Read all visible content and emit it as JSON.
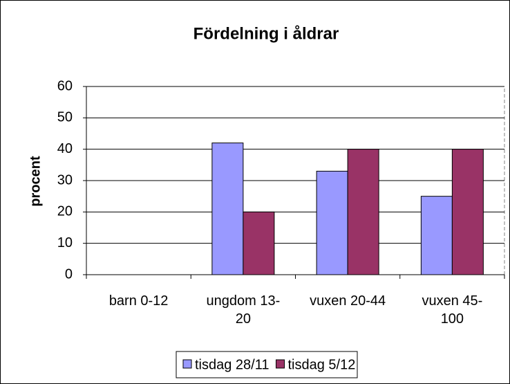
{
  "chart_data": {
    "type": "bar",
    "title": "Fördelning i åldrar",
    "y_label": "procent",
    "categories": [
      "barn 0-12",
      "ungdom 13-20",
      "vuxen 20-44",
      "vuxen 45-100"
    ],
    "series": [
      {
        "name": "tisdag 28/11",
        "color": "#9999ff",
        "values": [
          0,
          42,
          33,
          25
        ]
      },
      {
        "name": "tisdag 5/12",
        "color": "#993366",
        "values": [
          0,
          20,
          40,
          40
        ]
      }
    ],
    "ylim": [
      0,
      60
    ],
    "yticks": [
      0,
      10,
      20,
      30,
      40,
      50,
      60
    ],
    "grid": true,
    "legend": "bottom"
  }
}
